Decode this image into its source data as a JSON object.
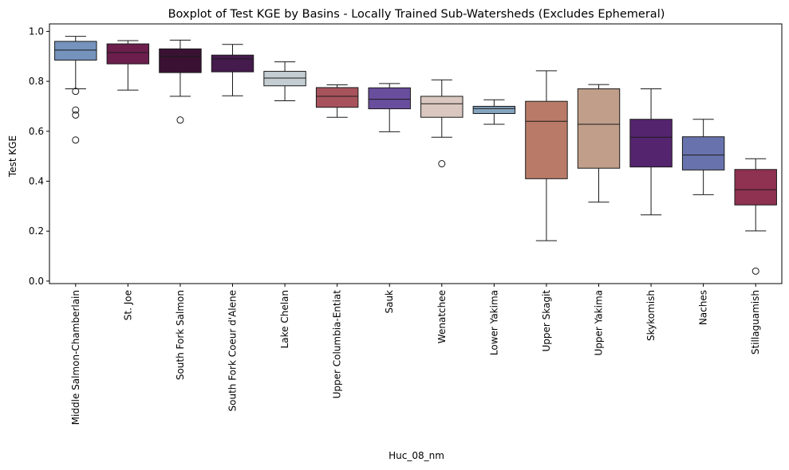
{
  "chart_data": {
    "type": "box",
    "title": "Boxplot of Test KGE by Basins - Locally Trained Sub-Watersheds (Excludes Ephemeral)",
    "xlabel": "Huc_08_nm",
    "ylabel": "Test KGE",
    "ylim": [
      -0.01,
      1.03
    ],
    "yticks": [
      "0.0",
      "0.2",
      "0.4",
      "0.6",
      "0.8",
      "1.0"
    ],
    "grid": false,
    "categories": [
      "Middle Salmon-Chamberlain",
      "St. Joe",
      "South Fork Salmon",
      "South Fork Coeur d'Alene",
      "Lake Chelan",
      "Upper Columbia-Entiat",
      "Sauk",
      "Wenatchee",
      "Lower Yakima",
      "Upper Skagit",
      "Upper Yakima",
      "Skykomish",
      "Naches",
      "Stillaguamish"
    ],
    "boxes": [
      {
        "whisker_low": 0.77,
        "q1": 0.885,
        "median": 0.925,
        "q3": 0.96,
        "whisker_high": 0.98,
        "outliers": [
          0.76,
          0.685,
          0.665,
          0.565
        ],
        "color": "#7593bd"
      },
      {
        "whisker_low": 0.765,
        "q1": 0.87,
        "median": 0.915,
        "q3": 0.95,
        "whisker_high": 0.963,
        "outliers": [],
        "color": "#6c1e4d"
      },
      {
        "whisker_low": 0.74,
        "q1": 0.835,
        "median": 0.9,
        "q3": 0.93,
        "whisker_high": 0.965,
        "outliers": [
          0.645
        ],
        "color": "#3a1133"
      },
      {
        "whisker_low": 0.742,
        "q1": 0.838,
        "median": 0.89,
        "q3": 0.905,
        "whisker_high": 0.948,
        "outliers": [],
        "color": "#451a4d"
      },
      {
        "whisker_low": 0.722,
        "q1": 0.782,
        "median": 0.813,
        "q3": 0.84,
        "whisker_high": 0.878,
        "outliers": [],
        "color": "#c4ced2"
      },
      {
        "whisker_low": 0.656,
        "q1": 0.696,
        "median": 0.74,
        "q3": 0.775,
        "whisker_high": 0.786,
        "outliers": [],
        "color": "#a8535c"
      },
      {
        "whisker_low": 0.598,
        "q1": 0.69,
        "median": 0.728,
        "q3": 0.774,
        "whisker_high": 0.791,
        "outliers": [],
        "color": "#6a4e9e"
      },
      {
        "whisker_low": 0.576,
        "q1": 0.656,
        "median": 0.71,
        "q3": 0.74,
        "whisker_high": 0.806,
        "outliers": [
          0.47
        ],
        "color": "#d9c7c0"
      },
      {
        "whisker_low": 0.628,
        "q1": 0.671,
        "median": 0.691,
        "q3": 0.7,
        "whisker_high": 0.726,
        "outliers": [],
        "color": "#85a4bf"
      },
      {
        "whisker_low": 0.162,
        "q1": 0.41,
        "median": 0.64,
        "q3": 0.72,
        "whisker_high": 0.842,
        "outliers": [],
        "color": "#b97b67"
      },
      {
        "whisker_low": 0.316,
        "q1": 0.452,
        "median": 0.628,
        "q3": 0.77,
        "whisker_high": 0.787,
        "outliers": [],
        "color": "#c09e89"
      },
      {
        "whisker_low": 0.265,
        "q1": 0.457,
        "median": 0.576,
        "q3": 0.648,
        "whisker_high": 0.77,
        "outliers": [],
        "color": "#55246e"
      },
      {
        "whisker_low": 0.346,
        "q1": 0.445,
        "median": 0.505,
        "q3": 0.578,
        "whisker_high": 0.648,
        "outliers": [],
        "color": "#6873ad"
      },
      {
        "whisker_low": 0.201,
        "q1": 0.305,
        "median": 0.366,
        "q3": 0.447,
        "whisker_high": 0.49,
        "outliers": [
          0.04
        ],
        "color": "#8f3150"
      }
    ]
  }
}
